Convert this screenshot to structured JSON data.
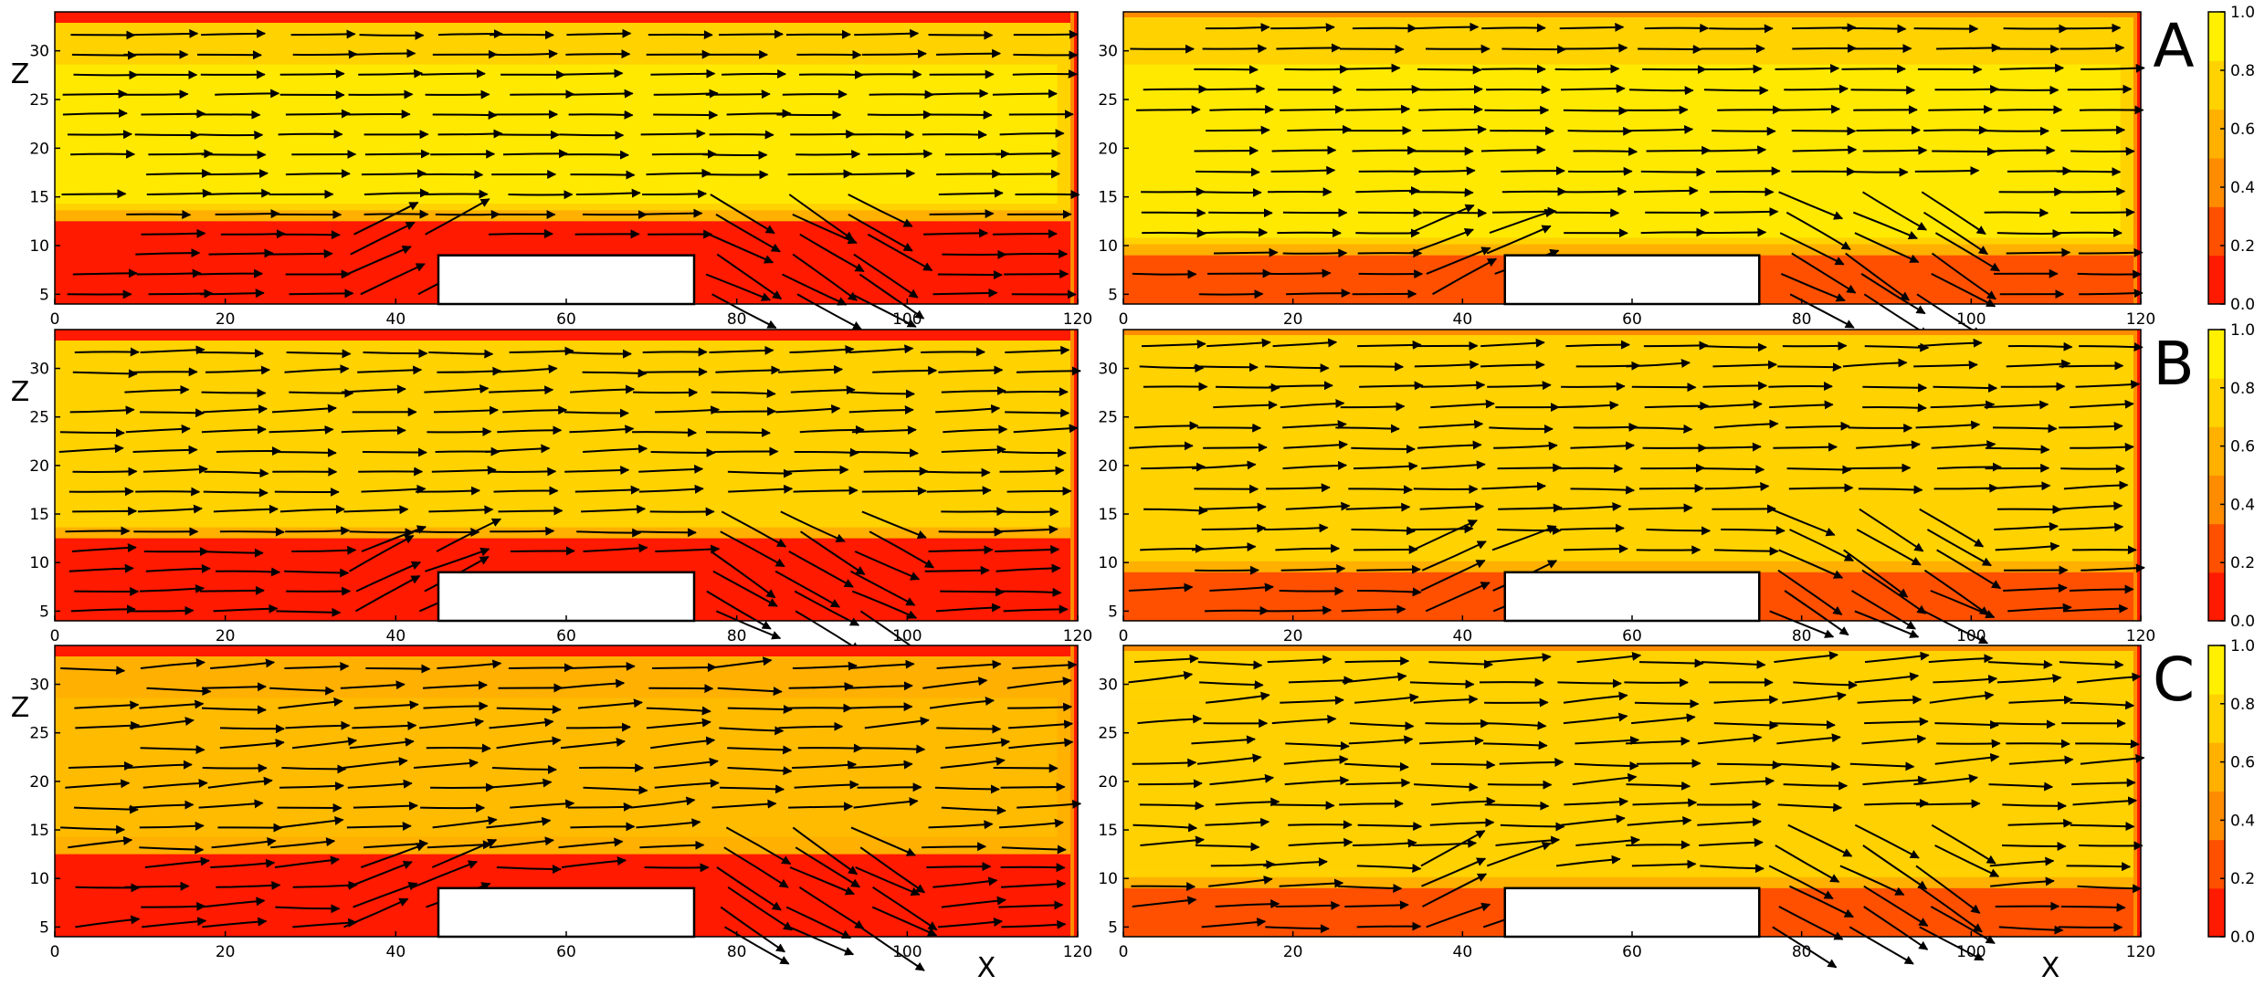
{
  "figure": {
    "rows": [
      {
        "label": "A",
        "variant": 0
      },
      {
        "label": "B",
        "variant": 1
      },
      {
        "label": "C",
        "variant": 2
      }
    ],
    "xlabel": "X",
    "zlabel": "Z",
    "colormap": [
      "#ff1a00",
      "#ff5000",
      "#ff8c00",
      "#ffb000",
      "#ffd200",
      "#fff000"
    ],
    "colorbar_ticks": [
      "0.0",
      "0.2",
      "0.4",
      "0.6",
      "0.8",
      "1.0"
    ],
    "x_ticks": [
      "0",
      "20",
      "40",
      "60",
      "80",
      "100",
      "120"
    ],
    "z_ticks": [
      "5",
      "10",
      "15",
      "20",
      "25",
      "30"
    ],
    "obstacle": {
      "x_start": 45,
      "x_end": 75,
      "z_top": 9
    },
    "domain": {
      "xlim": [
        0,
        120
      ],
      "zlim": [
        4,
        34
      ]
    }
  },
  "chart_data": [
    {
      "type": "heatmap",
      "panel": "A-left",
      "row": "A",
      "x_range": [
        0,
        120
      ],
      "z_range": [
        4,
        34
      ],
      "value_range": [
        0.0,
        1.0
      ],
      "obstacle": [
        45,
        75,
        9
      ]
    },
    {
      "type": "heatmap",
      "panel": "A-right",
      "row": "A",
      "x_range": [
        0,
        120
      ],
      "z_range": [
        4,
        34
      ],
      "value_range": [
        0.0,
        1.0
      ],
      "obstacle": [
        45,
        75,
        9
      ]
    },
    {
      "type": "heatmap",
      "panel": "B-left",
      "row": "B",
      "x_range": [
        0,
        120
      ],
      "z_range": [
        4,
        34
      ],
      "value_range": [
        0.0,
        1.0
      ],
      "obstacle": [
        45,
        75,
        9
      ]
    },
    {
      "type": "heatmap",
      "panel": "B-right",
      "row": "B",
      "x_range": [
        0,
        120
      ],
      "z_range": [
        4,
        34
      ],
      "value_range": [
        0.0,
        1.0
      ],
      "obstacle": [
        45,
        75,
        9
      ]
    },
    {
      "type": "heatmap",
      "panel": "C-left",
      "row": "C",
      "x_range": [
        0,
        120
      ],
      "z_range": [
        4,
        34
      ],
      "value_range": [
        0.0,
        1.0
      ],
      "obstacle": [
        45,
        75,
        9
      ]
    },
    {
      "type": "heatmap",
      "panel": "C-right",
      "row": "C",
      "x_range": [
        0,
        120
      ],
      "z_range": [
        4,
        34
      ],
      "value_range": [
        0.0,
        1.0
      ],
      "obstacle": [
        45,
        75,
        9
      ]
    }
  ]
}
